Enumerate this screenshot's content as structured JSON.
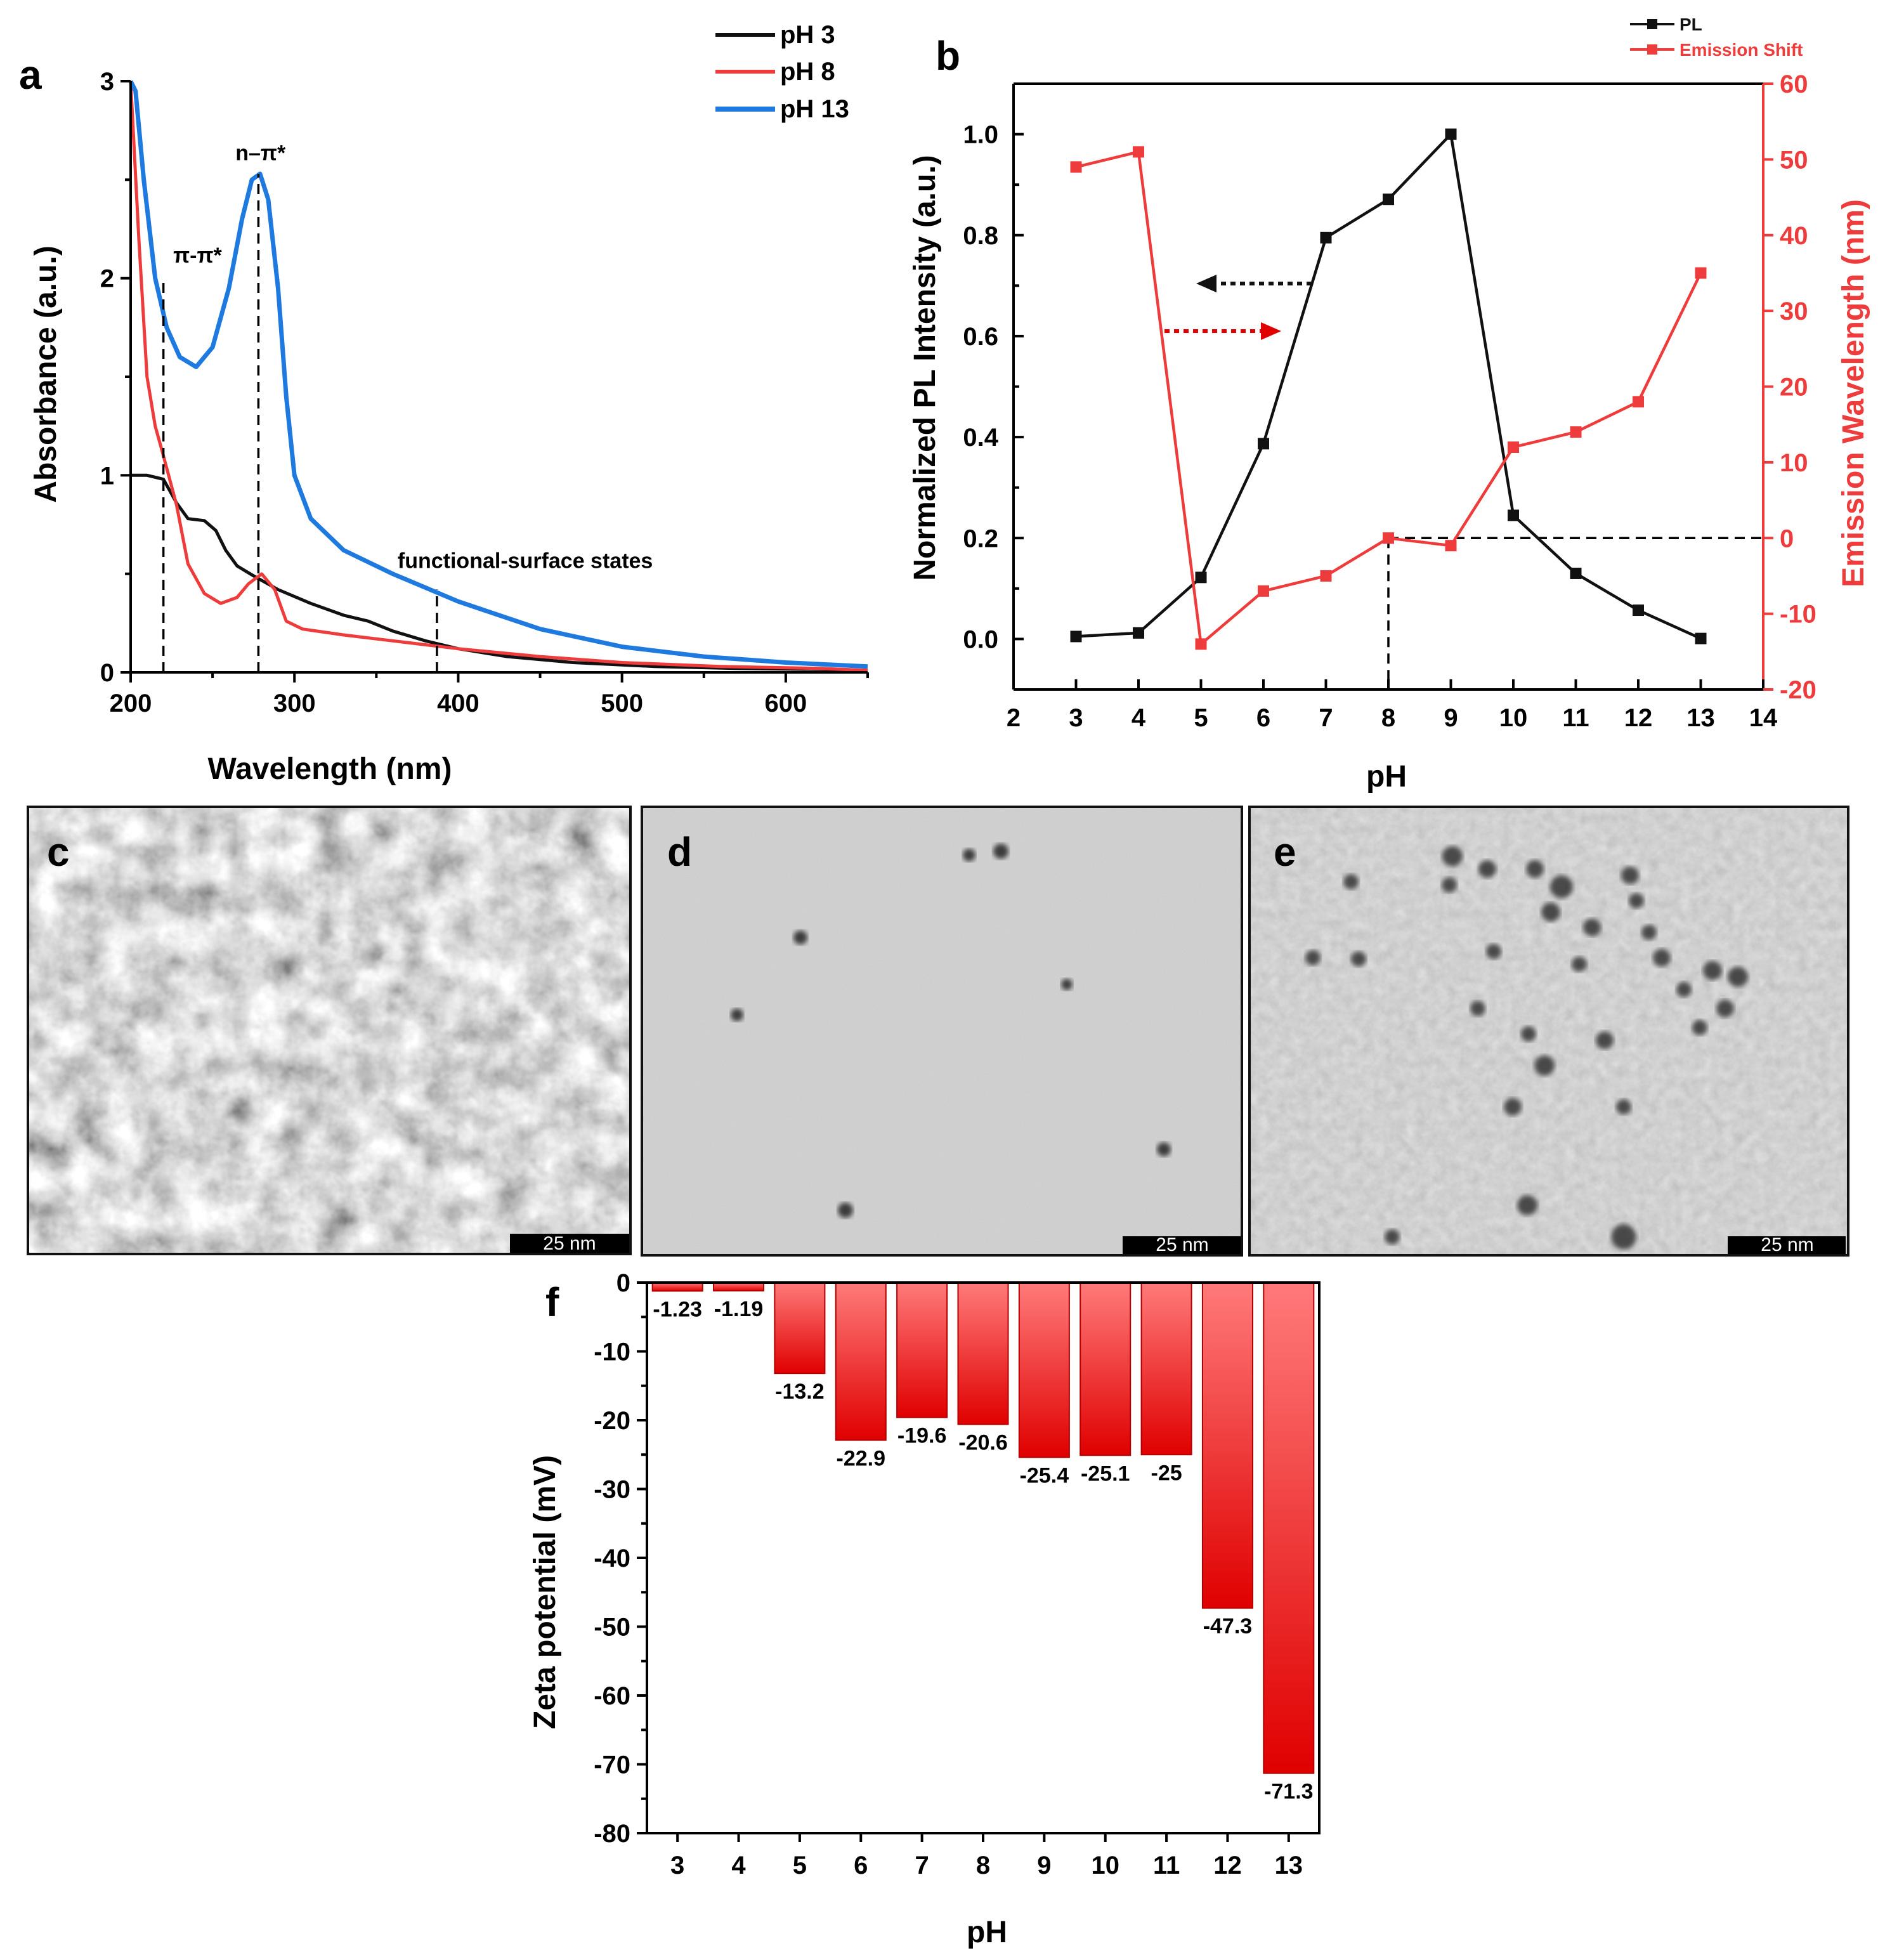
{
  "colors": {
    "black": "#111111",
    "red": "#ee3b3b",
    "blue": "#1f7ae0",
    "bar_top": "#ff6a6a",
    "bar_bottom": "#e00000",
    "bar_stroke": "#b00000"
  },
  "panels": {
    "a": "a",
    "b": "b",
    "c": "c",
    "d": "d",
    "e": "e",
    "f": "f"
  },
  "tem": {
    "scale_bar_label": "25 nm",
    "images": [
      "TEM micrograph (panel c)",
      "TEM micrograph (panel d)",
      "TEM micrograph (panel e)"
    ]
  },
  "chart_data": [
    {
      "id": "a",
      "type": "line",
      "title": "",
      "xlabel": "Wavelength (nm)",
      "ylabel": "Absorbance (a.u.)",
      "xlim": [
        200,
        650
      ],
      "ylim": [
        0,
        3
      ],
      "xticks": [
        200,
        300,
        400,
        500,
        600
      ],
      "yticks": [
        0,
        1,
        2,
        3
      ],
      "legend": {
        "position": "top-right",
        "entries": [
          "pH 3",
          "pH 8",
          "pH 13"
        ]
      },
      "series": [
        {
          "name": "pH 3",
          "color": "black",
          "x": [
            200,
            210,
            220,
            228,
            235,
            245,
            252,
            258,
            265,
            275,
            290,
            310,
            330,
            345,
            360,
            380,
            400,
            430,
            470,
            520,
            570,
            620,
            650
          ],
          "y": [
            1.0,
            1.0,
            0.98,
            0.86,
            0.78,
            0.77,
            0.72,
            0.62,
            0.54,
            0.49,
            0.42,
            0.35,
            0.29,
            0.26,
            0.21,
            0.16,
            0.12,
            0.08,
            0.05,
            0.03,
            0.02,
            0.015,
            0.01
          ]
        },
        {
          "name": "pH 8",
          "color": "red",
          "x": [
            200,
            205,
            210,
            215,
            220,
            228,
            235,
            245,
            255,
            265,
            272,
            280,
            288,
            295,
            305,
            330,
            360,
            400,
            450,
            500,
            560,
            620,
            650
          ],
          "y": [
            3.0,
            2.2,
            1.5,
            1.25,
            1.1,
            0.85,
            0.55,
            0.4,
            0.35,
            0.38,
            0.45,
            0.5,
            0.42,
            0.26,
            0.22,
            0.19,
            0.16,
            0.12,
            0.08,
            0.05,
            0.03,
            0.02,
            0.01
          ]
        },
        {
          "name": "pH 13",
          "color": "blue",
          "x": [
            200,
            203,
            208,
            215,
            222,
            230,
            240,
            250,
            260,
            268,
            274,
            279,
            284,
            290,
            295,
            300,
            310,
            330,
            360,
            400,
            450,
            500,
            550,
            600,
            650
          ],
          "y": [
            3.0,
            2.95,
            2.5,
            2.0,
            1.75,
            1.6,
            1.55,
            1.65,
            1.95,
            2.3,
            2.5,
            2.53,
            2.4,
            1.95,
            1.4,
            1.0,
            0.78,
            0.62,
            0.5,
            0.36,
            0.22,
            0.13,
            0.08,
            0.05,
            0.03
          ]
        }
      ],
      "vlines": [
        220,
        278,
        387
      ],
      "annotations": [
        {
          "text": "π-π*",
          "x": 226,
          "y": 2.08
        },
        {
          "text": "n–π*",
          "x": 264,
          "y": 2.6
        },
        {
          "text": "functional-surface states",
          "x": 363,
          "y": 0.53
        }
      ]
    },
    {
      "id": "b",
      "type": "line",
      "title": "",
      "xlabel": "pH",
      "ylabel": "Normalized PL Intensity (a.u.)",
      "ylabel_right": "Emission Wavelength (nm)",
      "xlim": [
        2,
        14
      ],
      "ylim": [
        -0.1,
        1.1
      ],
      "ylim_right": [
        -20,
        60
      ],
      "xticks": [
        2,
        3,
        4,
        5,
        6,
        7,
        8,
        9,
        10,
        11,
        12,
        13,
        14
      ],
      "yticks": [
        0.0,
        0.2,
        0.4,
        0.6,
        0.8,
        1.0
      ],
      "yticks_right": [
        -20,
        -10,
        0,
        10,
        20,
        30,
        40,
        50,
        60
      ],
      "xticklabels": [
        "2",
        "3",
        "4",
        "5",
        "6",
        "7",
        "8",
        "9",
        "10",
        "11",
        "12",
        "13",
        "14"
      ],
      "yticklabels": [
        "0.0",
        "0.2",
        "0.4",
        "0.6",
        "0.8",
        "1.0"
      ],
      "yticklabels_right": [
        "-20",
        "-10",
        "0",
        "10",
        "20",
        "30",
        "40",
        "50",
        "60"
      ],
      "legend": {
        "position": "top-right",
        "entries": [
          "PL",
          "Emission Shift"
        ]
      },
      "series": [
        {
          "name": "PL",
          "color": "black",
          "axis": "left",
          "x": [
            3,
            4,
            5,
            6,
            7,
            8,
            9,
            10,
            11,
            12,
            13
          ],
          "y": [
            0.005,
            0.012,
            0.122,
            0.387,
            0.795,
            0.871,
            1.0,
            0.245,
            0.13,
            0.057,
            0.001
          ]
        },
        {
          "name": "Emission Shift",
          "color": "red",
          "axis": "right",
          "x": [
            3,
            4,
            5,
            6,
            7,
            8,
            9,
            10,
            11,
            12,
            13
          ],
          "y": [
            49,
            51,
            -14,
            -7,
            -5,
            0,
            -1,
            12,
            14,
            18,
            35
          ]
        }
      ],
      "reference_lines": {
        "y_right": 0,
        "x": 8
      }
    },
    {
      "id": "f",
      "type": "bar",
      "title": "",
      "xlabel": "pH",
      "ylabel": "Zeta potential (mV)",
      "ylim": [
        -80,
        0
      ],
      "yticks": [
        0,
        -10,
        -20,
        -30,
        -40,
        -50,
        -60,
        -70,
        -80
      ],
      "categories": [
        "3",
        "4",
        "5",
        "6",
        "7",
        "8",
        "9",
        "10",
        "11",
        "12",
        "13"
      ],
      "values": [
        -1.23,
        -1.19,
        -13.2,
        -22.9,
        -19.6,
        -20.6,
        -25.4,
        -25.1,
        -25,
        -47.3,
        -71.3
      ],
      "value_labels": [
        "-1.23",
        "-1.19",
        "-13.2",
        "-22.9",
        "-19.6",
        "-20.6",
        "-25.4",
        "-25.1",
        "-25",
        "-47.3",
        "-71.3"
      ]
    }
  ]
}
